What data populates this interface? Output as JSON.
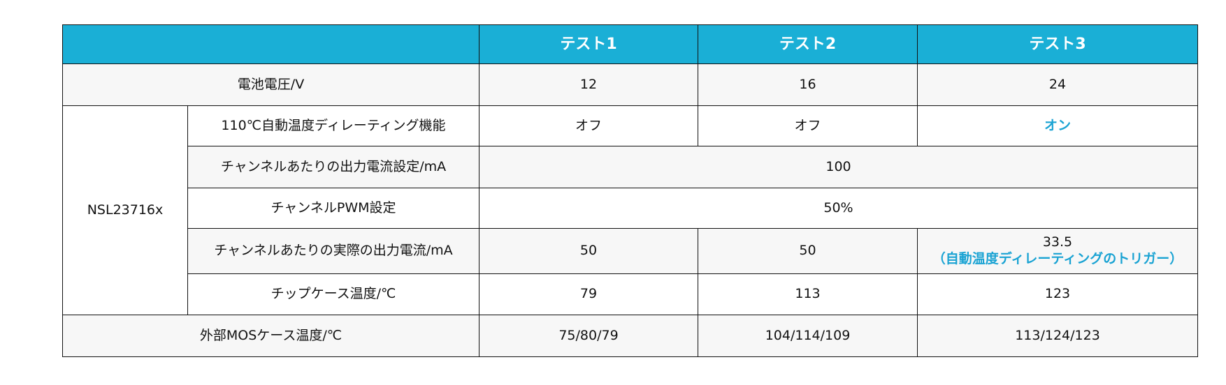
{
  "header": {
    "columns": [
      "テスト1",
      "テスト2",
      "テスト3"
    ]
  },
  "rows": {
    "battery_voltage": {
      "label": "電池電圧/V",
      "values": [
        "12",
        "16",
        "24"
      ]
    },
    "group_label": "NSL23716x",
    "derating": {
      "label": "110℃自動温度ディレーティング機能",
      "values": [
        "オフ",
        "オフ",
        "オン"
      ]
    },
    "current_setting": {
      "label": "チャンネルあたりの出力電流設定/mA",
      "value": "100"
    },
    "pwm_setting": {
      "label": "チャンネルPWM設定",
      "value": "50%"
    },
    "actual_current": {
      "label": "チャンネルあたりの実際の出力電流/mA",
      "values": [
        "50",
        "50",
        "33.5"
      ],
      "note": "（自動温度ディレーティングのトリガー）"
    },
    "chip_temp": {
      "label": "チップケース温度/℃",
      "values": [
        "79",
        "113",
        "123"
      ]
    },
    "mos_temp": {
      "label": "外部MOSケース温度/℃",
      "values": [
        "75/80/79",
        "104/114/109",
        "113/124/123"
      ]
    }
  },
  "colors": {
    "header_bg": "#1aafd6",
    "accent": "#1aa3d3",
    "row_alt": "#f7f7f7"
  }
}
